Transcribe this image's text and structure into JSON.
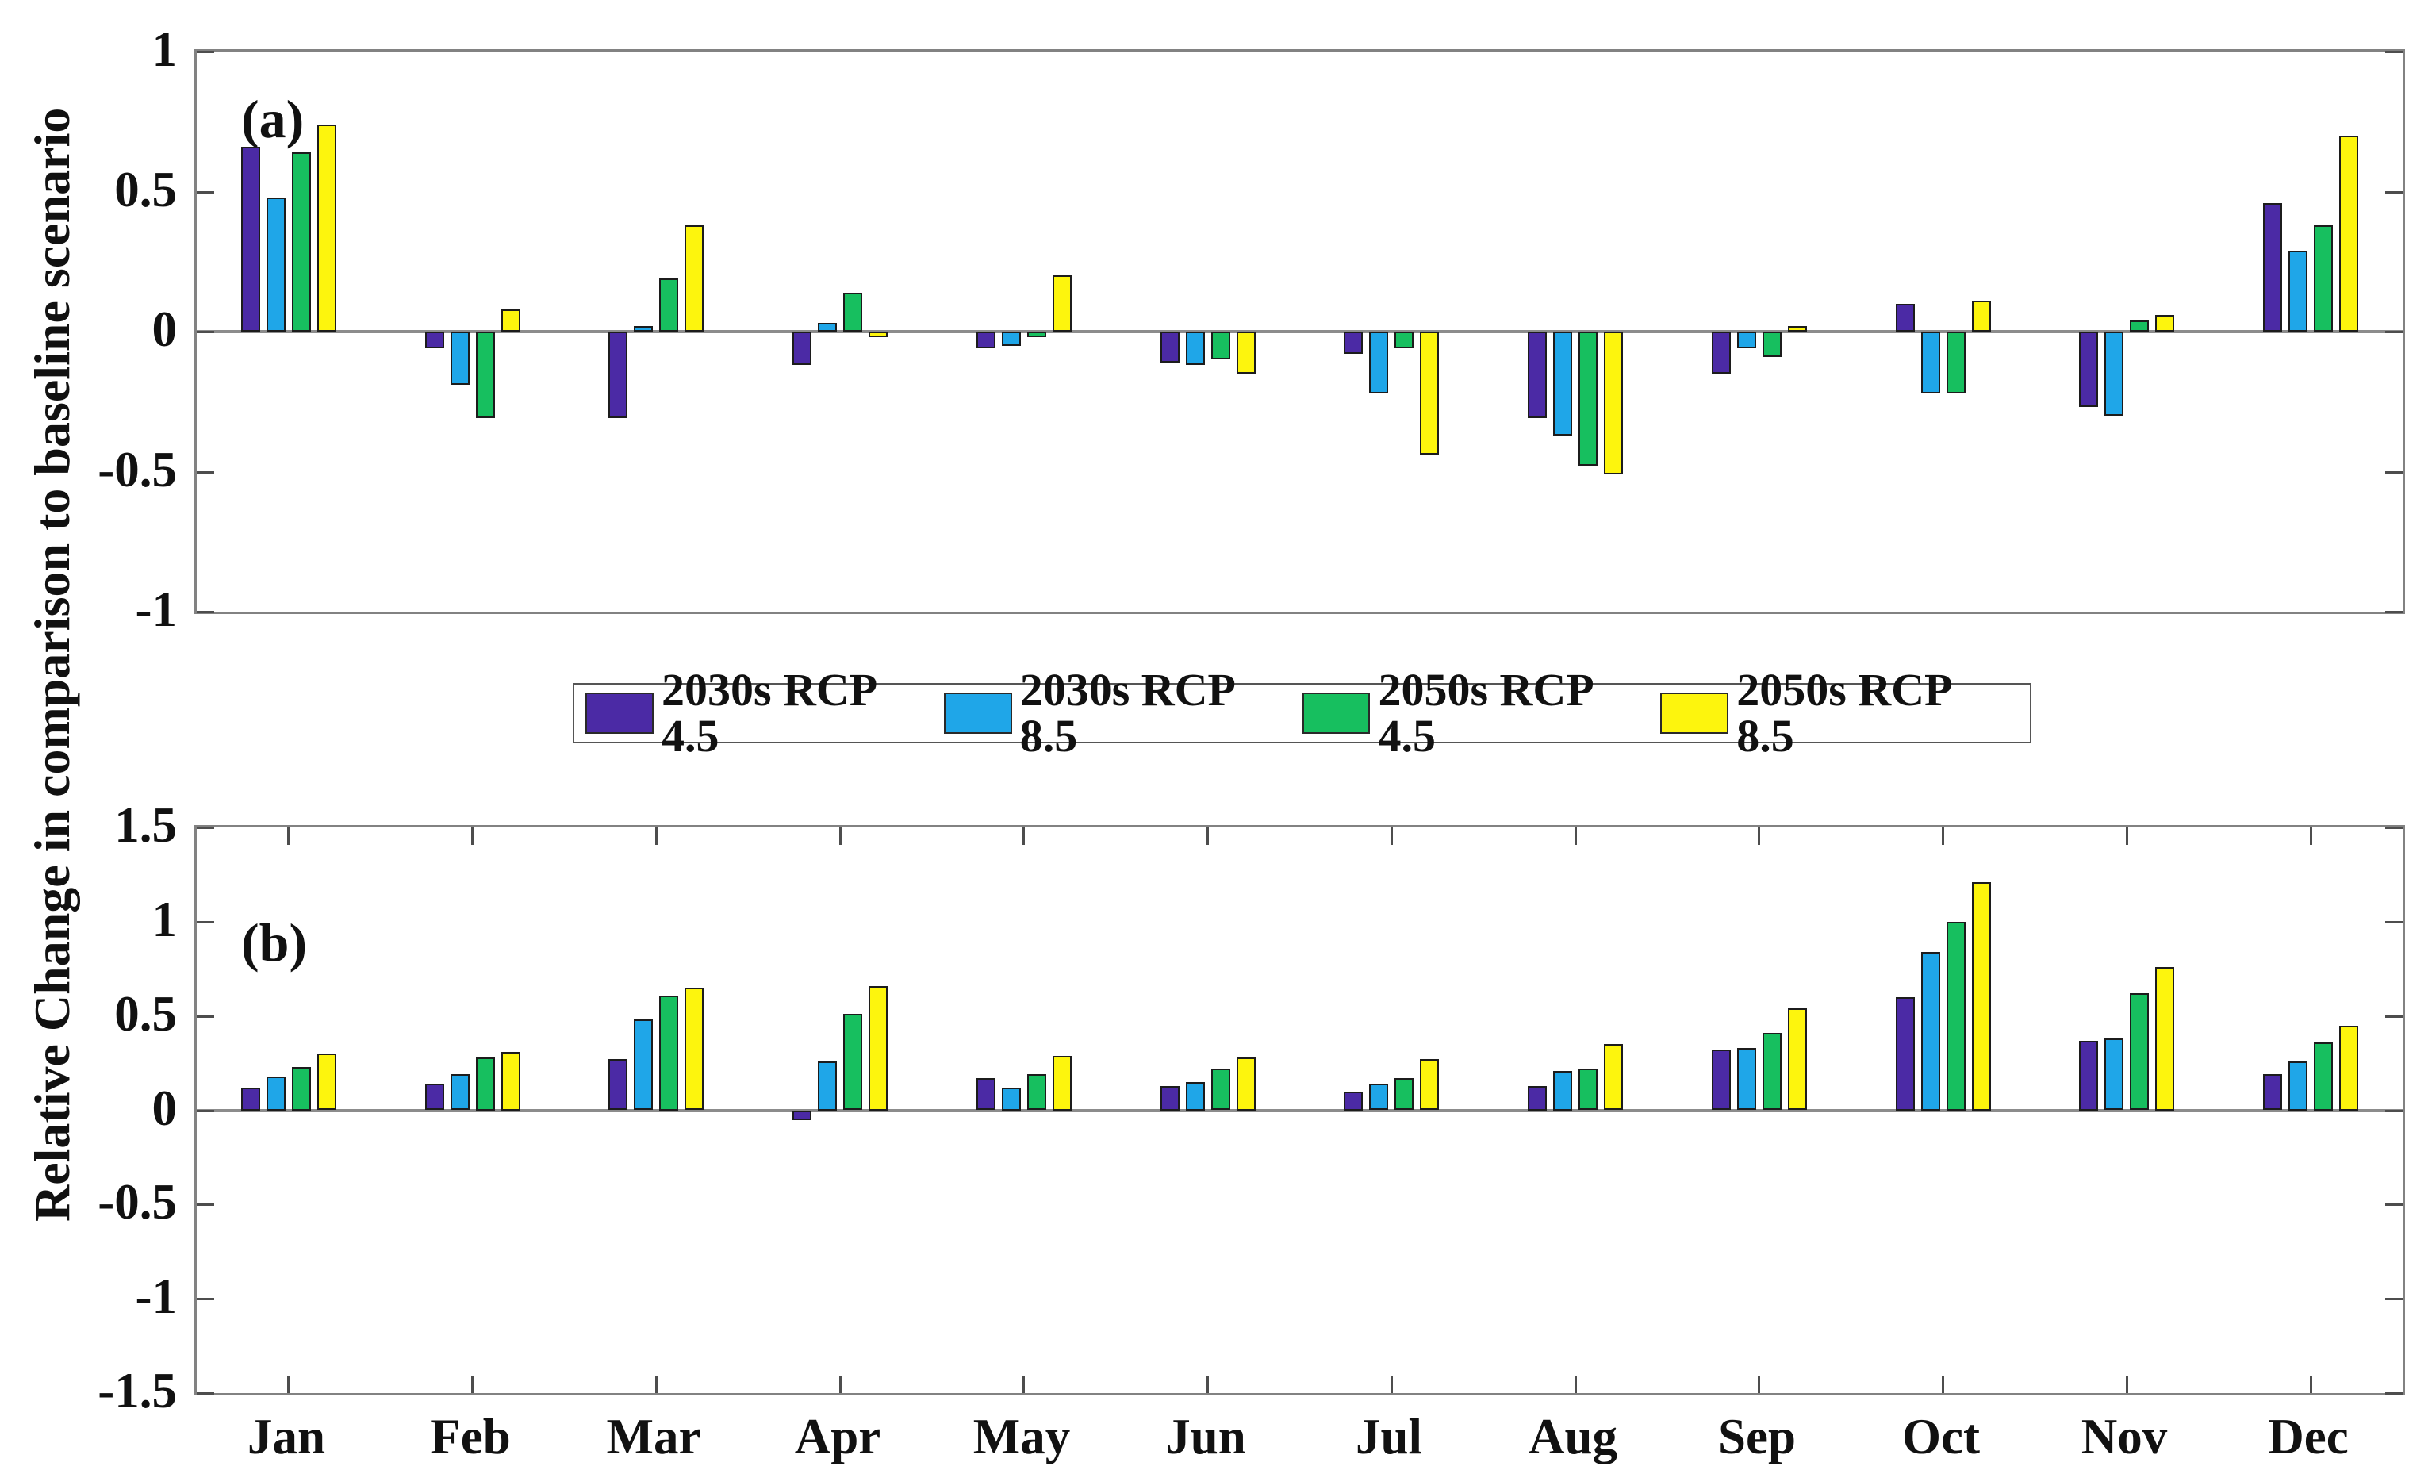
{
  "figure": {
    "ylabel": "Relative Change in comparison to baseline scenario",
    "categories": [
      "Jan",
      "Feb",
      "Mar",
      "Apr",
      "May",
      "Jun",
      "Jul",
      "Aug",
      "Sep",
      "Oct",
      "Nov",
      "Dec"
    ],
    "legend_labels": [
      "2030s RCP 4.5",
      "2030s RCP 8.5",
      "2050s RCP 4.5",
      "2050s RCP 8.5"
    ],
    "colors": [
      "#4B2AA5",
      "#1FA6E8",
      "#17BF5F",
      "#FDF50D"
    ],
    "frame_color": "#828282",
    "zero_line_color": "#8c8c8c",
    "legend_position": "between panels, centered"
  },
  "chart_data": [
    {
      "type": "bar",
      "panel_label": "(a)",
      "title": "",
      "xlabel": "",
      "ylabel": "Relative Change in comparison to baseline scenario",
      "categories": [
        "Jan",
        "Feb",
        "Mar",
        "Apr",
        "May",
        "Jun",
        "Jul",
        "Aug",
        "Sep",
        "Oct",
        "Nov",
        "Dec"
      ],
      "ylim": [
        -1,
        1
      ],
      "yticks": [
        1,
        0.5,
        0,
        -0.5,
        -1
      ],
      "ytick_labels": [
        "1",
        "0.5",
        "0",
        "-0.5",
        "-1"
      ],
      "grid": false,
      "series": [
        {
          "name": "2030s RCP 4.5",
          "values": [
            0.66,
            -0.06,
            -0.31,
            -0.12,
            -0.06,
            -0.11,
            -0.08,
            -0.31,
            -0.15,
            0.1,
            -0.27,
            0.46
          ]
        },
        {
          "name": "2030s RCP 8.5",
          "values": [
            0.48,
            -0.19,
            0.02,
            0.03,
            -0.05,
            -0.12,
            -0.22,
            -0.37,
            -0.06,
            -0.22,
            -0.3,
            0.29
          ]
        },
        {
          "name": "2050s RCP 4.5",
          "values": [
            0.64,
            -0.31,
            0.19,
            0.14,
            -0.02,
            -0.1,
            -0.06,
            -0.48,
            -0.09,
            -0.22,
            0.04,
            0.38
          ]
        },
        {
          "name": "2050s RCP 8.5",
          "values": [
            0.74,
            0.08,
            0.38,
            -0.02,
            0.2,
            -0.15,
            -0.44,
            -0.51,
            0.02,
            0.11,
            0.06,
            0.7
          ]
        }
      ]
    },
    {
      "type": "bar",
      "panel_label": "(b)",
      "title": "",
      "xlabel": "",
      "ylabel": "Relative Change in comparison to baseline scenario",
      "categories": [
        "Jan",
        "Feb",
        "Mar",
        "Apr",
        "May",
        "Jun",
        "Jul",
        "Aug",
        "Sep",
        "Oct",
        "Nov",
        "Dec"
      ],
      "ylim": [
        -1.5,
        1.5
      ],
      "yticks": [
        1.5,
        1,
        0.5,
        0,
        -0.5,
        -1,
        -1.5
      ],
      "ytick_labels": [
        "1.5",
        "1",
        "0.5",
        "0",
        "-0.5",
        "-1",
        "-1.5"
      ],
      "grid": false,
      "series": [
        {
          "name": "2030s RCP 4.5",
          "values": [
            0.12,
            0.14,
            0.27,
            -0.05,
            0.17,
            0.13,
            0.1,
            0.13,
            0.32,
            0.6,
            0.37,
            0.19
          ]
        },
        {
          "name": "2030s RCP 8.5",
          "values": [
            0.18,
            0.19,
            0.48,
            0.26,
            0.12,
            0.15,
            0.14,
            0.21,
            0.33,
            0.84,
            0.38,
            0.26
          ]
        },
        {
          "name": "2050s RCP 4.5",
          "values": [
            0.23,
            0.28,
            0.61,
            0.51,
            0.19,
            0.22,
            0.17,
            0.22,
            0.41,
            1.0,
            0.62,
            0.36
          ]
        },
        {
          "name": "2050s RCP 8.5",
          "values": [
            0.3,
            0.31,
            0.65,
            0.66,
            0.29,
            0.28,
            0.27,
            0.35,
            0.54,
            1.21,
            0.76,
            0.45
          ]
        }
      ]
    }
  ]
}
